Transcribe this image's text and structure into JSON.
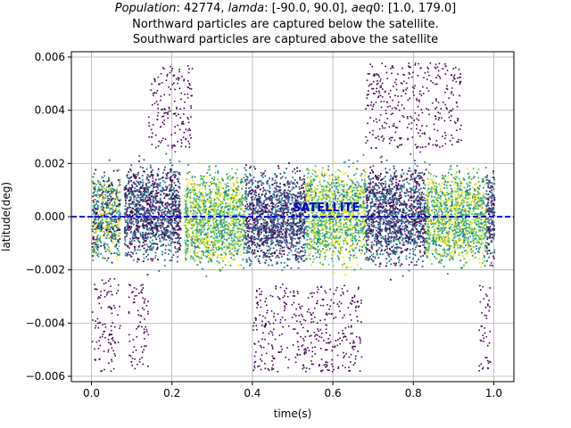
{
  "title": {
    "line1": {
      "pop_label": "Population",
      "pop_value": ": 42774, ",
      "lamda_label": "lamda",
      "lamda_value": ": [-90.0, 90.0], ",
      "aeq_label": "aeq",
      "aeq_value": "0: [1.0, 179.0]"
    },
    "line2": "Northward particles are captured below the satellite.",
    "line3": "Southward particles are captured above the satellite"
  },
  "chart_data": {
    "type": "scatter",
    "xlabel": "time(s)",
    "ylabel": "latitude(deg)",
    "xlim": [
      -0.05,
      1.05
    ],
    "ylim": [
      -0.0062,
      0.0062
    ],
    "xticks": [
      0.0,
      0.2,
      0.4,
      0.6,
      0.8,
      1.0
    ],
    "xtick_labels": [
      "0.0",
      "0.2",
      "0.4",
      "0.6",
      "0.8",
      "1.0"
    ],
    "yticks": [
      -0.006,
      -0.004,
      -0.002,
      0.0,
      0.002,
      0.004,
      0.006
    ],
    "ytick_labels": [
      "−0.006",
      "−0.004",
      "−0.002",
      "0.000",
      "0.002",
      "0.004",
      "0.006"
    ],
    "grid": true,
    "colormap": [
      "#440154",
      "#3b528b",
      "#21908c",
      "#5ec962",
      "#fde725"
    ],
    "satellite_line": {
      "y": 0.0,
      "color": "#0000cc",
      "style": "dashed"
    },
    "annotation": {
      "text": "SATELLITE",
      "x": 0.5,
      "y": 0.0002,
      "color": "#0000cc"
    },
    "clusters": [
      {
        "x_range": [
          0.0,
          0.07
        ],
        "y_range": [
          -0.0023,
          0.0024
        ],
        "color_group": "mixed"
      },
      {
        "x_range": [
          0.08,
          0.22
        ],
        "y_range": [
          -0.0023,
          0.0027
        ],
        "color_group": "dark"
      },
      {
        "x_range": [
          0.23,
          0.38
        ],
        "y_range": [
          -0.0026,
          0.0025
        ],
        "color_group": "light"
      },
      {
        "x_range": [
          0.38,
          0.53
        ],
        "y_range": [
          -0.0025,
          0.0025
        ],
        "color_group": "dark"
      },
      {
        "x_range": [
          0.53,
          0.68
        ],
        "y_range": [
          -0.0025,
          0.0027
        ],
        "color_group": "light"
      },
      {
        "x_range": [
          0.68,
          0.83
        ],
        "y_range": [
          -0.0025,
          0.0027
        ],
        "color_group": "dark"
      },
      {
        "x_range": [
          0.83,
          0.98
        ],
        "y_range": [
          -0.0025,
          0.0025
        ],
        "color_group": "light"
      },
      {
        "x_range": [
          0.98,
          1.0
        ],
        "y_range": [
          -0.0025,
          0.0025
        ],
        "color_group": "dark"
      }
    ],
    "sparse_regions": [
      {
        "x_range": [
          0.0,
          0.07
        ],
        "y_range": [
          -0.0058,
          -0.0023
        ]
      },
      {
        "x_range": [
          0.09,
          0.14
        ],
        "y_range": [
          -0.0057,
          -0.0025
        ]
      },
      {
        "x_range": [
          0.14,
          0.25
        ],
        "y_range": [
          0.0026,
          0.0057
        ]
      },
      {
        "x_range": [
          0.4,
          0.67
        ],
        "y_range": [
          -0.0058,
          -0.0025
        ]
      },
      {
        "x_range": [
          0.68,
          0.92
        ],
        "y_range": [
          0.0026,
          0.0058
        ]
      },
      {
        "x_range": [
          0.96,
          0.99
        ],
        "y_range": [
          -0.0058,
          -0.0025
        ]
      }
    ]
  }
}
